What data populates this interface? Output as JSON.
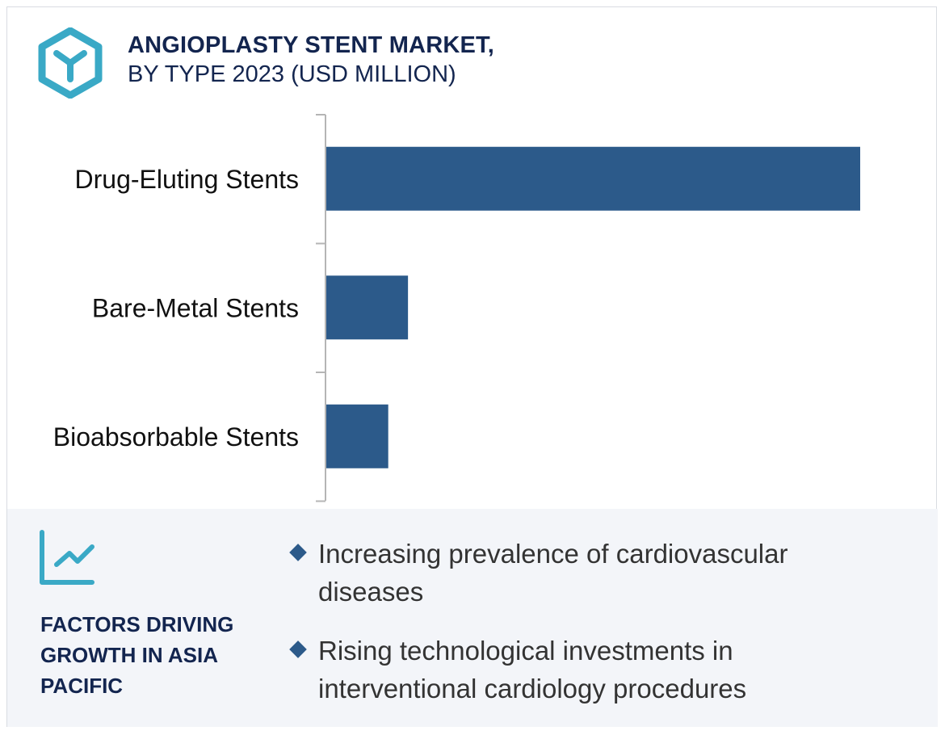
{
  "header": {
    "title_line1": "ANGIOPLASTY STENT MARKET,",
    "title_line2": "BY TYPE 2023 (USD MILLION)",
    "logo_icon": "hexagon-y-logo"
  },
  "chart_data": {
    "type": "bar",
    "orientation": "horizontal",
    "title": "ANGIOPLASTY STENT MARKET, BY TYPE 2023 (USD MILLION)",
    "categories": [
      "Drug-Eluting Stents",
      "Bare-Metal Stents",
      "Bioabsorbable Stents"
    ],
    "values": [
      100,
      15.3,
      11.6
    ],
    "value_note_units": "relative (no axis values printed)",
    "xlim": [
      0,
      100
    ],
    "grid": false,
    "bar_color": "#2c5a8a"
  },
  "factors": {
    "icon": "line-chart-icon",
    "title": "FACTORS DRIVING GROWTH IN ASIA PACIFIC",
    "items": [
      "Increasing prevalence of cardiovascular diseases",
      "Rising technological investments in interventional cardiology procedures"
    ]
  },
  "colors": {
    "accent": "#3aa9c6",
    "navy": "#13254f",
    "bar": "#2c5a8a",
    "panel": "#f3f5f9"
  }
}
